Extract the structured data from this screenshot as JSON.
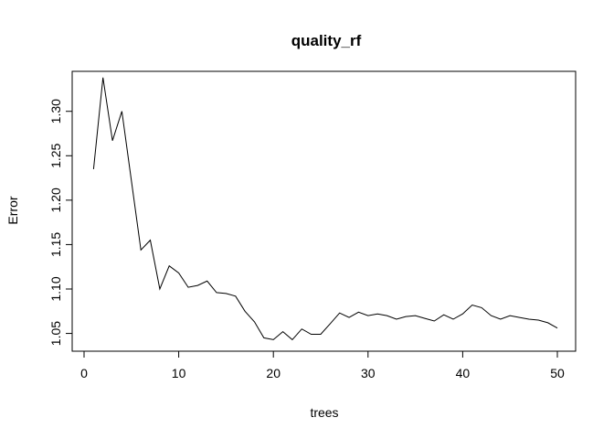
{
  "chart_data": {
    "type": "line",
    "title": "quality_rf",
    "xlabel": "trees",
    "ylabel": "Error",
    "xlim": [
      0,
      50
    ],
    "ylim": [
      1.03,
      1.345
    ],
    "xticks": [
      0,
      10,
      20,
      30,
      40,
      50
    ],
    "yticks": [
      1.05,
      1.1,
      1.15,
      1.2,
      1.25,
      1.3
    ],
    "xtick_labels": [
      "0",
      "10",
      "20",
      "30",
      "40",
      "50"
    ],
    "ytick_labels": [
      "1.05",
      "1.10",
      "1.15",
      "1.20",
      "1.25",
      "1.30"
    ],
    "grid": false,
    "series": [
      {
        "x": [
          1,
          2,
          3,
          4,
          5,
          6,
          7,
          8,
          9,
          10,
          11,
          12,
          13,
          14,
          15,
          16,
          17,
          18,
          19,
          20,
          21,
          22,
          23,
          24,
          25,
          26,
          27,
          28,
          29,
          30,
          31,
          32,
          33,
          34,
          35,
          36,
          37,
          38,
          39,
          40,
          41,
          42,
          43,
          44,
          45,
          46,
          47,
          48,
          49,
          50
        ],
        "values": [
          1.235,
          1.338,
          1.267,
          1.3,
          1.222,
          1.144,
          1.155,
          1.1,
          1.126,
          1.118,
          1.102,
          1.104,
          1.109,
          1.096,
          1.095,
          1.092,
          1.075,
          1.063,
          1.045,
          1.043,
          1.052,
          1.043,
          1.055,
          1.049,
          1.049,
          1.061,
          1.073,
          1.068,
          1.074,
          1.07,
          1.072,
          1.07,
          1.066,
          1.069,
          1.07,
          1.067,
          1.064,
          1.071,
          1.066,
          1.072,
          1.082,
          1.079,
          1.07,
          1.066,
          1.07,
          1.068,
          1.066,
          1.065,
          1.062,
          1.056
        ],
        "color": "#000000"
      }
    ]
  }
}
